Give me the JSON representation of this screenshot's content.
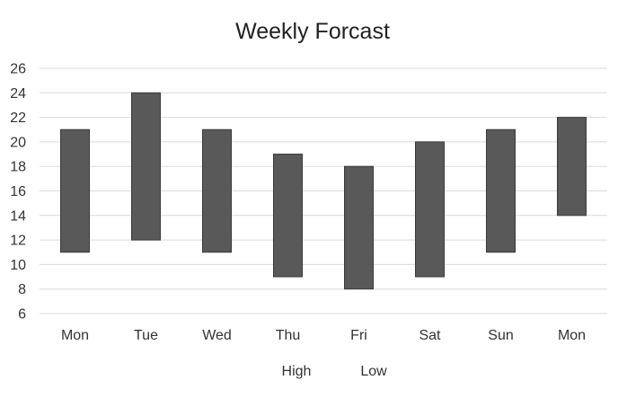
{
  "chart_data": {
    "type": "bar",
    "subtype": "floating-range",
    "title": "Weekly Forcast",
    "categories": [
      "Mon",
      "Tue",
      "Wed",
      "Thu",
      "Fri",
      "Sat",
      "Sun",
      "Mon"
    ],
    "series": [
      {
        "name": "High",
        "values": [
          21,
          24,
          21,
          19,
          18,
          20,
          21,
          22
        ]
      },
      {
        "name": "Low",
        "values": [
          11,
          12,
          11,
          9,
          8,
          9,
          11,
          14
        ]
      }
    ],
    "yticks": [
      6,
      8,
      10,
      12,
      14,
      16,
      18,
      20,
      22,
      24,
      26
    ],
    "ylim": [
      6,
      26
    ],
    "grid": true,
    "legend_position": "bottom",
    "colors": {
      "bar": "#595959",
      "bar_border": "#3a3a3a",
      "grid": "#d9d9d9"
    }
  }
}
